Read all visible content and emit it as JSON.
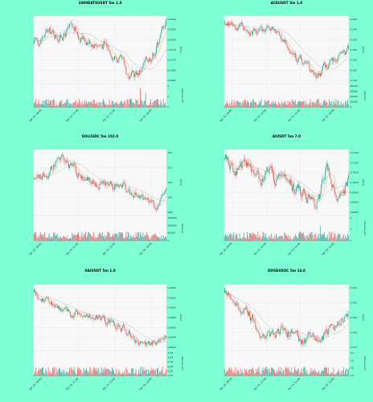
{
  "background": "#7fffd4",
  "colors": {
    "up": "#26a69a",
    "down": "#ef5350",
    "ma1": "#c9a227",
    "ma2": "#9e9e9e"
  },
  "chart_data": [
    {
      "type": "candlestick",
      "title": "1000RATSUSDT 5m 1.0",
      "ylabel": "Price",
      "vlabel": "Volume 10³",
      "yticks": [
        "0.0290",
        "0.0285",
        "0.0280",
        "0.0275",
        "0.0270",
        "0.0265",
        "0.0260"
      ],
      "vticks": [
        "4",
        "2",
        "0"
      ],
      "xticks": [
        "Apr 24, 09:00",
        "Apr 24, 12:00",
        "Apr 24, 15:00",
        "Apr 24, 18:00"
      ]
    },
    {
      "type": "candlestick",
      "title": "ACEUSDT 5m 1.0",
      "ylabel": "Price",
      "vlabel": "Volume",
      "yticks": [
        "4.260",
        "4.240",
        "4.220",
        "4.200",
        "4.180",
        "4.160",
        "4.140"
      ],
      "vticks": [
        "40000",
        "30000",
        "20000",
        "10000",
        "0"
      ],
      "xticks": [
        "Apr 24, 09:00",
        "Apr 24, 12:00",
        "Apr 24, 15:00",
        "Apr 24, 18:00"
      ]
    },
    {
      "type": "candlestick",
      "title": "SOLUSDC 5m 102.0",
      "ylabel": "Price",
      "vlabel": "Volume",
      "yticks": [
        "152",
        "151",
        "150",
        "149",
        "148"
      ],
      "vticks": [
        "150000",
        "100000",
        "50000",
        "0"
      ],
      "xticks": [
        "Apr 24, 09:00",
        "Apr 24, 12:00",
        "Apr 24, 15:00",
        "Apr 24, 18:00"
      ]
    },
    {
      "type": "candlestick",
      "title": "AIUSDT 5m 7.0",
      "ylabel": "Price",
      "vlabel": "Volume 10⁵",
      "yticks": [
        "0.7150",
        "0.7100",
        "0.7050",
        "0.7000",
        "0.6950",
        "0.6900",
        "0.6850"
      ],
      "vticks": [
        "2",
        "1",
        "0"
      ],
      "xticks": [
        "Apr 24, 09:00",
        "Apr 24, 12:00",
        "Apr 24, 15:00",
        "Apr 24, 18:00"
      ]
    },
    {
      "type": "candlestick",
      "title": "XAIUSDT 5m 1.0",
      "ylabel": "Price",
      "vlabel": "Volume 10⁵",
      "yticks": [
        "0.6640",
        "0.6620",
        "0.6600",
        "0.6580",
        "0.6560",
        "0.6540",
        "0.6520"
      ],
      "vticks": [
        "1.25",
        "1.00",
        "0.75",
        "0.50",
        "0.25",
        "0.00"
      ],
      "xticks": [
        "Apr 24, 09:00",
        "Apr 24, 12:00",
        "Apr 24, 15:00",
        "Apr 24, 18:00"
      ]
    },
    {
      "type": "candlestick",
      "title": "DOGEUSDC 5m 14.0",
      "ylabel": "Price",
      "vlabel": "Volume 10⁶",
      "yticks": [
        "0.161",
        "0.160",
        "0.159",
        "0.158",
        "0.157"
      ],
      "vticks": [
        "1.5",
        "1.0",
        "0.5",
        "0.0"
      ],
      "xticks": [
        "Apr 24, 09:00",
        "Apr 24, 12:00",
        "Apr 24, 15:00",
        "Apr 24, 18:00"
      ]
    }
  ]
}
